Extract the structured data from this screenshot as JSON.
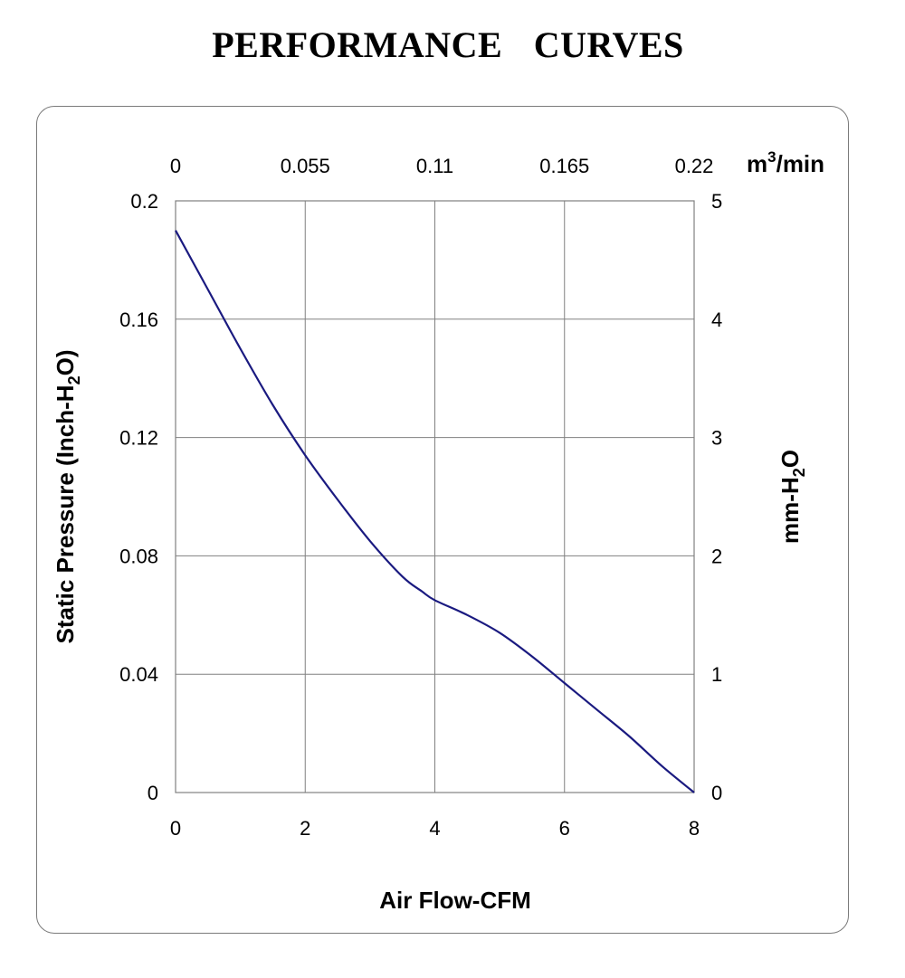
{
  "title": "PERFORMANCE    CURVES",
  "chart_data": {
    "type": "line",
    "x": [
      0,
      0.5,
      1,
      1.5,
      2,
      2.5,
      3,
      3.5,
      3.8,
      4,
      4.5,
      5,
      5.5,
      6,
      6.5,
      7,
      7.5,
      8
    ],
    "series": [
      {
        "values": [
          0.19,
          0.17,
          0.15,
          0.131,
          0.114,
          0.099,
          0.085,
          0.073,
          0.068,
          0.065,
          0.06,
          0.054,
          0.046,
          0.037,
          0.028,
          0.019,
          0.009,
          0.0
        ]
      }
    ],
    "xlim": [
      0,
      8
    ],
    "ylim": [
      0,
      0.2
    ],
    "x_ticks": [
      "0",
      "2",
      "4",
      "6",
      "8"
    ],
    "y_ticks": [
      "0",
      "0.04",
      "0.08",
      "0.12",
      "0.16",
      "0.2"
    ],
    "x2_ticks": [
      "0",
      "0.055",
      "0.11",
      "0.165",
      "0.22"
    ],
    "y2_ticks": [
      "0",
      "1",
      "2",
      "3",
      "4",
      "5"
    ],
    "xlabel": "Air Flow-CFM",
    "ylabel": {
      "main": "Static Pressure (Inch-H",
      "sub": "2",
      "end": "O)"
    },
    "x2label": {
      "main": "m",
      "sup": "3",
      "end": "/min"
    },
    "y2label": {
      "main": "mm-H",
      "sub": "2",
      "end": "O"
    },
    "grid": true,
    "line_color": "#1a1a80"
  }
}
